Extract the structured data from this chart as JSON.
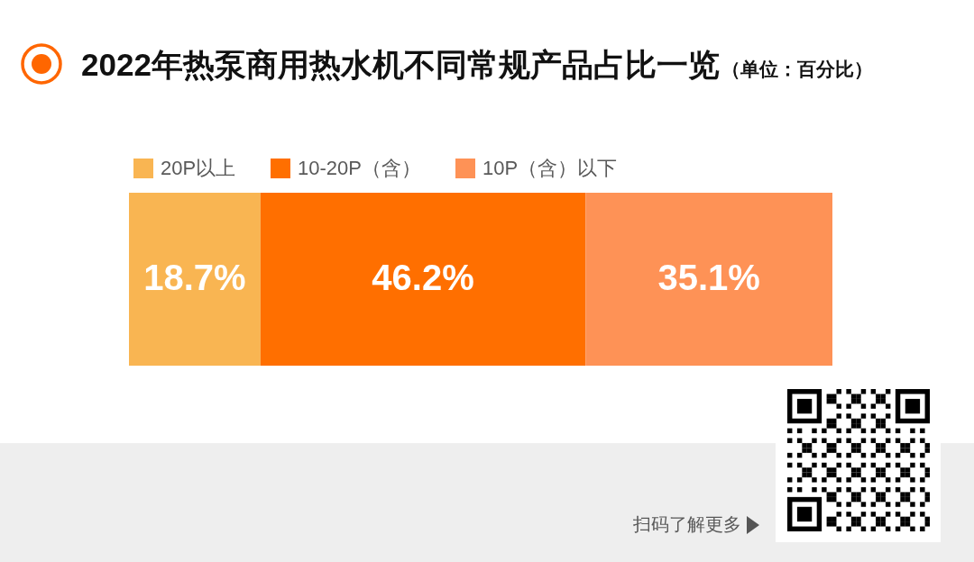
{
  "chart_data": {
    "type": "bar",
    "title": "2022年热泵商用热水机不同常规产品占比一览",
    "subtitle": "（单位：百分比）",
    "orientation": "horizontal",
    "stacked": true,
    "categories": [
      null
    ],
    "series": [
      {
        "name": "20P以上",
        "color": "#f9b552",
        "values": [
          18.7
        ],
        "value_labels": [
          "18.7%"
        ]
      },
      {
        "name": "10-20P（含）",
        "color": "#ff6f00",
        "values": [
          46.2
        ],
        "value_labels": [
          "46.2%"
        ]
      },
      {
        "name": "10P（含）以下",
        "color": "#fe9256",
        "values": [
          35.1
        ],
        "value_labels": [
          "35.1%"
        ]
      }
    ],
    "legend": "top",
    "tick_labels": false,
    "annotations": [
      "扫码了解更多"
    ]
  }
}
